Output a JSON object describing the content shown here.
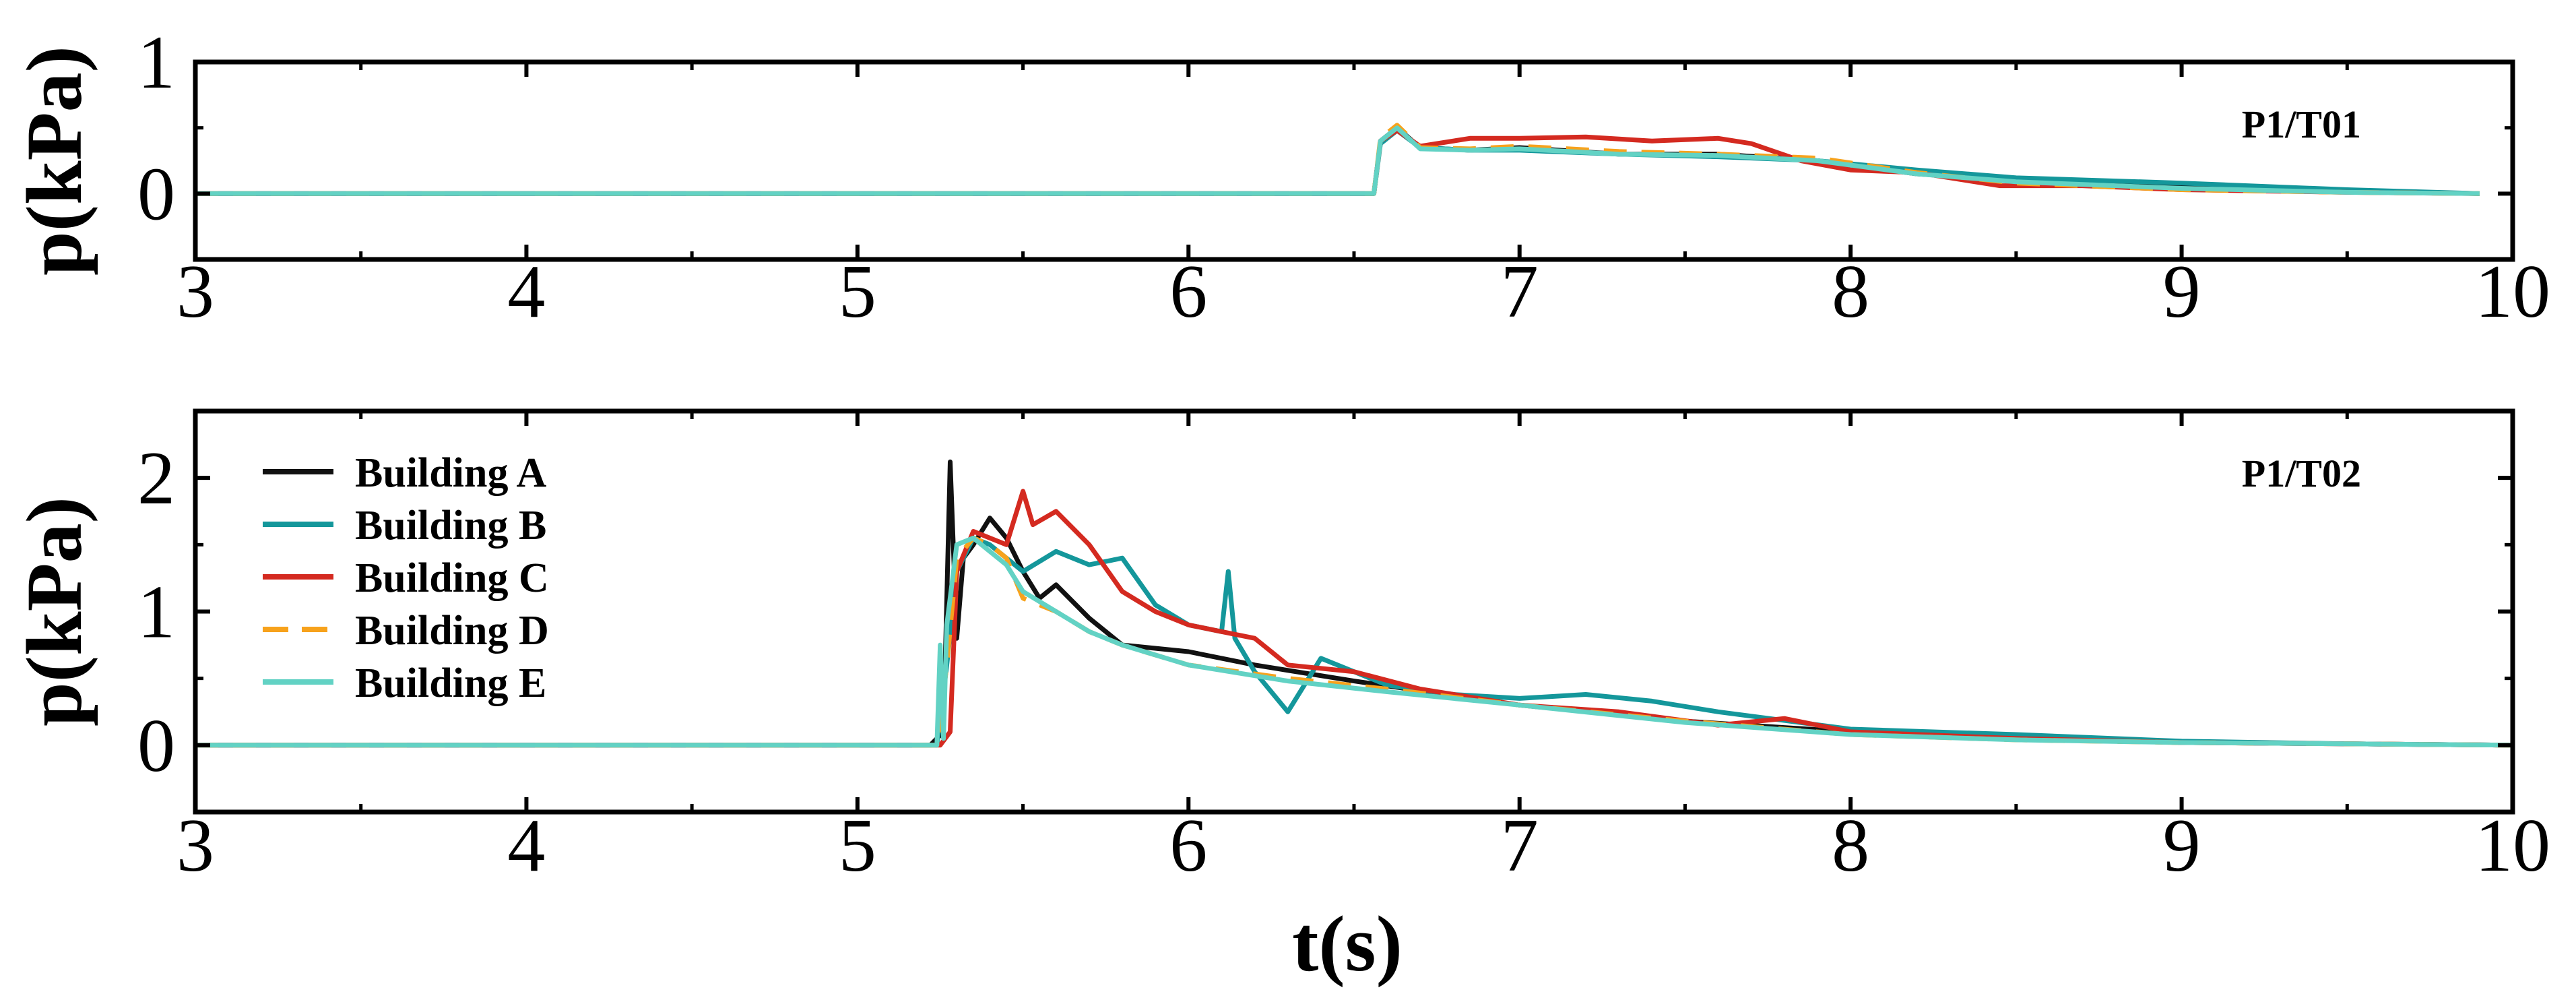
{
  "chart_data": [
    {
      "type": "line",
      "panel_label": "P1/T01",
      "xlabel": "",
      "ylabel": "p(kPa)",
      "xlim": [
        3,
        10
      ],
      "ylim": [
        -0.5,
        1
      ],
      "xticks": [
        "3",
        "4",
        "5",
        "6",
        "7",
        "8",
        "9",
        "10"
      ],
      "yticks": [
        "0",
        "1"
      ],
      "series": [
        {
          "name": "Building A",
          "color": "#111111",
          "dash": false,
          "x": [
            3,
            6.56,
            6.58,
            6.63,
            6.7,
            6.85,
            7,
            7.3,
            7.6,
            7.9,
            8.2,
            8.5,
            9,
            9.5,
            9.9
          ],
          "y": [
            0,
            0,
            0.4,
            0.5,
            0.35,
            0.33,
            0.35,
            0.3,
            0.3,
            0.25,
            0.15,
            0.1,
            0.05,
            0.02,
            0
          ]
        },
        {
          "name": "Building B",
          "color": "#14979b",
          "dash": false,
          "x": [
            3,
            6.56,
            6.58,
            6.63,
            6.7,
            6.85,
            7,
            7.3,
            7.6,
            7.9,
            8.2,
            8.5,
            9,
            9.5,
            9.9
          ],
          "y": [
            0,
            0,
            0.38,
            0.48,
            0.35,
            0.33,
            0.33,
            0.3,
            0.28,
            0.25,
            0.18,
            0.12,
            0.08,
            0.03,
            0
          ]
        },
        {
          "name": "Building C",
          "color": "#d42a20",
          "dash": false,
          "x": [
            3,
            6.56,
            6.58,
            6.63,
            6.7,
            6.85,
            7,
            7.2,
            7.4,
            7.6,
            7.7,
            7.85,
            8.0,
            8.2,
            8.45,
            8.7,
            9,
            9.5,
            9.9
          ],
          "y": [
            0,
            0,
            0.4,
            0.48,
            0.36,
            0.42,
            0.42,
            0.43,
            0.4,
            0.42,
            0.38,
            0.25,
            0.18,
            0.16,
            0.06,
            0.06,
            0.03,
            0.01,
            0
          ]
        },
        {
          "name": "Building D",
          "color": "#f7a21c",
          "dash": true,
          "x": [
            3,
            6.56,
            6.58,
            6.63,
            6.7,
            6.85,
            7,
            7.3,
            7.6,
            7.9,
            8.2,
            8.5,
            9,
            9.5,
            9.9
          ],
          "y": [
            0,
            0,
            0.42,
            0.52,
            0.35,
            0.34,
            0.36,
            0.32,
            0.3,
            0.27,
            0.16,
            0.08,
            0.03,
            0.01,
            0
          ]
        },
        {
          "name": "Building E",
          "color": "#62d2c4",
          "dash": false,
          "x": [
            3,
            6.56,
            6.58,
            6.63,
            6.7,
            6.85,
            7,
            7.3,
            7.6,
            7.9,
            8.2,
            8.5,
            9,
            9.5,
            9.9
          ],
          "y": [
            0,
            0,
            0.4,
            0.5,
            0.34,
            0.33,
            0.34,
            0.3,
            0.29,
            0.25,
            0.15,
            0.09,
            0.04,
            0.01,
            0
          ]
        }
      ]
    },
    {
      "type": "line",
      "panel_label": "P1/T02",
      "xlabel": "t(s)",
      "ylabel": "p(kPa)",
      "xlim": [
        3,
        10
      ],
      "ylim": [
        -0.5,
        2.5
      ],
      "xticks": [
        "3",
        "4",
        "5",
        "6",
        "7",
        "8",
        "9",
        "10"
      ],
      "yticks": [
        "0",
        "1",
        "2"
      ],
      "legend_position": "top-left",
      "series": [
        {
          "name": "Building A",
          "color": "#111111",
          "dash": false,
          "x": [
            3,
            5.22,
            5.26,
            5.28,
            5.3,
            5.32,
            5.35,
            5.4,
            5.45,
            5.5,
            5.55,
            5.6,
            5.7,
            5.8,
            6,
            6.2,
            6.5,
            7,
            7.5,
            8,
            8.5,
            9,
            9.5,
            10
          ],
          "y": [
            0,
            0,
            0.1,
            2.12,
            0.8,
            1.4,
            1.5,
            1.7,
            1.55,
            1.3,
            1.1,
            1.2,
            0.95,
            0.75,
            0.7,
            0.6,
            0.48,
            0.3,
            0.18,
            0.1,
            0.05,
            0.02,
            0.01,
            0
          ]
        },
        {
          "name": "Building B",
          "color": "#14979b",
          "dash": false,
          "x": [
            3,
            5.24,
            5.27,
            5.3,
            5.35,
            5.4,
            5.5,
            5.6,
            5.7,
            5.8,
            5.9,
            6.0,
            6.1,
            6.12,
            6.14,
            6.2,
            6.3,
            6.4,
            6.6,
            6.8,
            7.0,
            7.2,
            7.4,
            7.6,
            8.0,
            8.5,
            9,
            9.5,
            10
          ],
          "y": [
            0,
            0,
            0.6,
            1.3,
            1.55,
            1.5,
            1.3,
            1.45,
            1.35,
            1.4,
            1.05,
            0.9,
            0.85,
            1.3,
            0.8,
            0.55,
            0.25,
            0.65,
            0.45,
            0.38,
            0.35,
            0.38,
            0.33,
            0.25,
            0.12,
            0.08,
            0.03,
            0.01,
            0
          ]
        },
        {
          "name": "Building C",
          "color": "#d42a20",
          "dash": false,
          "x": [
            3,
            5.25,
            5.28,
            5.3,
            5.35,
            5.4,
            5.45,
            5.5,
            5.53,
            5.6,
            5.7,
            5.8,
            5.9,
            6.0,
            6.1,
            6.2,
            6.3,
            6.5,
            6.7,
            7.0,
            7.3,
            7.6,
            7.8,
            8.0,
            8.5,
            9,
            9.5,
            10
          ],
          "y": [
            0,
            0,
            0.1,
            1.3,
            1.6,
            1.55,
            1.5,
            1.9,
            1.65,
            1.75,
            1.5,
            1.15,
            1.0,
            0.9,
            0.85,
            0.8,
            0.6,
            0.55,
            0.42,
            0.3,
            0.25,
            0.15,
            0.2,
            0.1,
            0.05,
            0.02,
            0.01,
            0
          ]
        },
        {
          "name": "Building D",
          "color": "#f7a21c",
          "dash": true,
          "x": [
            3,
            5.24,
            5.27,
            5.3,
            5.35,
            5.4,
            5.45,
            5.5,
            5.6,
            5.7,
            5.8,
            6.0,
            6.3,
            6.6,
            7,
            7.5,
            8,
            8.5,
            9,
            9.5,
            10
          ],
          "y": [
            0,
            0,
            0.6,
            1.4,
            1.55,
            1.5,
            1.4,
            1.1,
            1.0,
            0.85,
            0.75,
            0.6,
            0.5,
            0.42,
            0.3,
            0.18,
            0.08,
            0.04,
            0.02,
            0.01,
            0
          ]
        },
        {
          "name": "Building E",
          "color": "#62d2c4",
          "dash": false,
          "x": [
            3,
            5.24,
            5.25,
            5.26,
            5.27,
            5.3,
            5.35,
            5.4,
            5.45,
            5.5,
            5.6,
            5.7,
            5.8,
            6.0,
            6.3,
            6.6,
            7,
            7.5,
            8,
            8.5,
            9,
            9.5,
            10
          ],
          "y": [
            0,
            0,
            0.75,
            0.05,
            0.9,
            1.5,
            1.55,
            1.45,
            1.35,
            1.15,
            1.0,
            0.85,
            0.75,
            0.6,
            0.48,
            0.4,
            0.3,
            0.17,
            0.08,
            0.04,
            0.02,
            0.01,
            0
          ]
        }
      ]
    }
  ]
}
